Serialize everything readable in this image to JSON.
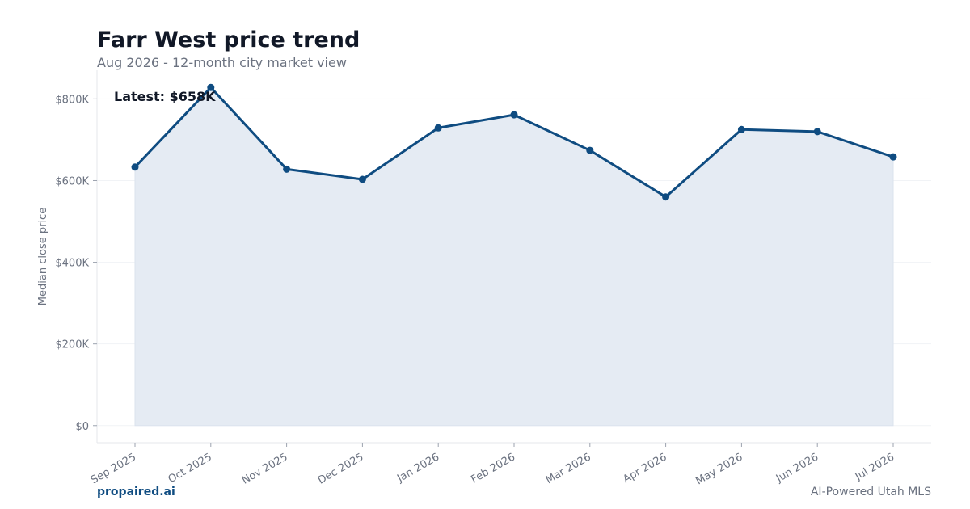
{
  "header": {
    "title": "Farr West price trend",
    "subtitle": "Aug 2026 - 12-month city market view"
  },
  "footer": {
    "brand": "propaired.ai",
    "tagline": "AI-Powered Utah MLS"
  },
  "colors": {
    "line": "#0f4c81",
    "area": "#e5ebf3",
    "grid": "#f1f3f6",
    "axis": "#e5e7eb",
    "text_muted": "#6b7280",
    "text_dark": "#111827"
  },
  "chart_data": {
    "type": "area",
    "title": "Farr West price trend",
    "subtitle": "Aug 2026 - 12-month city market view",
    "xlabel": "",
    "ylabel": "Median close price",
    "categories": [
      "Sep 2025",
      "Oct 2025",
      "Nov 2025",
      "Dec 2025",
      "Jan 2026",
      "Feb 2026",
      "Mar 2026",
      "Apr 2026",
      "May 2026",
      "Jun 2026",
      "Jul 2026"
    ],
    "values": [
      633000,
      828000,
      628000,
      603000,
      729000,
      761000,
      674000,
      560000,
      725000,
      720000,
      658000
    ],
    "ylim": [
      -42000,
      870000
    ],
    "yticks": [
      0,
      200000,
      400000,
      600000,
      800000
    ],
    "ytick_labels": [
      "$0",
      "$200K",
      "$400K",
      "$600K",
      "$800K"
    ],
    "annotation": "Latest: $658K",
    "grid": true
  }
}
